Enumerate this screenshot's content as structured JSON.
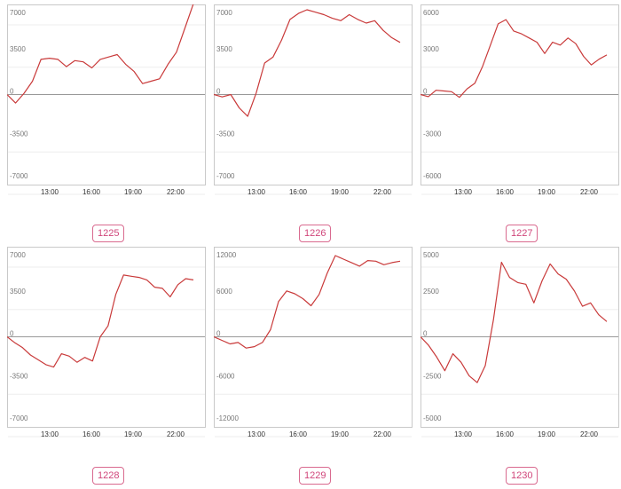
{
  "colors": {
    "line": "#c93a3a",
    "zero": "#999999",
    "grid": "#eeeeee",
    "border": "#c9c9c9",
    "badge": "#d0457a"
  },
  "chart_data": [
    {
      "type": "line",
      "label": "1225",
      "ylim": [
        -7000,
        7000
      ],
      "yticks": [
        7000,
        3500,
        0,
        -3500,
        -7000
      ],
      "xticks": [
        "13:00",
        "16:00",
        "19:00",
        "22:00"
      ],
      "values": [
        0,
        -700,
        100,
        1100,
        2900,
        3000,
        2900,
        2300,
        2800,
        2700,
        2200,
        2900,
        3100,
        3300,
        2500,
        1900,
        900,
        1100,
        1300,
        2500,
        3500,
        5500,
        7500
      ]
    },
    {
      "type": "line",
      "label": "1226",
      "ylim": [
        -7000,
        7000
      ],
      "yticks": [
        7000,
        3500,
        0,
        -3500,
        -7000
      ],
      "xticks": [
        "13:00",
        "16:00",
        "19:00",
        "22:00"
      ],
      "values": [
        0,
        -200,
        0,
        -1100,
        -1800,
        100,
        2600,
        3100,
        4500,
        6200,
        6700,
        7000,
        6800,
        6600,
        6300,
        6100,
        6600,
        6200,
        5900,
        6100,
        5300,
        4700,
        4300
      ]
    },
    {
      "type": "line",
      "label": "1227",
      "ylim": [
        -6000,
        6000
      ],
      "yticks": [
        6000,
        3000,
        0,
        -3000,
        -6000
      ],
      "xticks": [
        "13:00",
        "16:00",
        "19:00",
        "22:00"
      ],
      "values": [
        0,
        -150,
        300,
        250,
        200,
        -200,
        400,
        800,
        2000,
        3500,
        5000,
        5300,
        4500,
        4300,
        4000,
        3700,
        2900,
        3700,
        3500,
        4000,
        3600,
        2700,
        2100,
        2500,
        2800
      ]
    },
    {
      "type": "line",
      "label": "1228",
      "ylim": [
        -7000,
        7000
      ],
      "yticks": [
        7000,
        3500,
        0,
        -3500,
        -7000
      ],
      "xticks": [
        "13:00",
        "16:00",
        "19:00",
        "22:00"
      ],
      "values": [
        0,
        -500,
        -900,
        -1500,
        -1900,
        -2300,
        -2500,
        -1400,
        -1600,
        -2100,
        -1700,
        -2000,
        0,
        900,
        3500,
        5100,
        5000,
        4900,
        4700,
        4100,
        4000,
        3300,
        4300,
        4800,
        4700
      ]
    },
    {
      "type": "line",
      "label": "1229",
      "ylim": [
        -12000,
        12000
      ],
      "yticks": [
        12000,
        6000,
        0,
        -6000,
        -12000
      ],
      "xticks": [
        "13:00",
        "16:00",
        "19:00",
        "22:00"
      ],
      "values": [
        0,
        -500,
        -1000,
        -800,
        -1600,
        -1400,
        -800,
        1000,
        5000,
        6500,
        6100,
        5400,
        4400,
        6000,
        9000,
        11500,
        11000,
        10500,
        10000,
        10800,
        10700,
        10200,
        10500,
        10700
      ]
    },
    {
      "type": "line",
      "label": "1230",
      "ylim": [
        -5000,
        5000
      ],
      "yticks": [
        5000,
        2500,
        0,
        -2500,
        -5000
      ],
      "xticks": [
        "13:00",
        "16:00",
        "19:00",
        "22:00"
      ],
      "values": [
        0,
        -500,
        -1200,
        -2000,
        -1000,
        -1500,
        -2300,
        -2700,
        -1700,
        1000,
        4400,
        3500,
        3200,
        3100,
        2000,
        3300,
        4300,
        3700,
        3400,
        2700,
        1800,
        2000,
        1300,
        900
      ]
    }
  ]
}
